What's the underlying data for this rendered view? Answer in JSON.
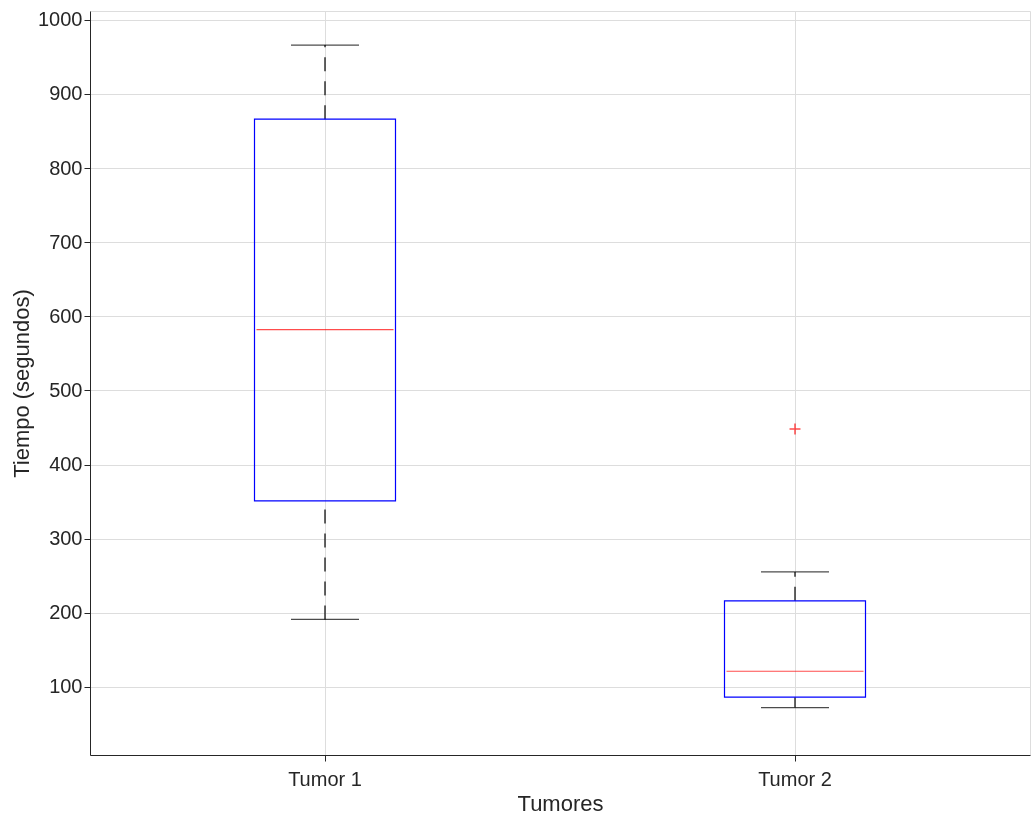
{
  "chart_data": {
    "type": "box",
    "xlabel": "Tumores",
    "ylabel": "Tiempo (segundos)",
    "categories": [
      "Tumor 1",
      "Tumor 2"
    ],
    "boxes": [
      {
        "low": 191,
        "q1": 351,
        "median": 582,
        "q3": 866,
        "high": 966
      },
      {
        "low": 72,
        "q1": 86,
        "median": 121,
        "q3": 216,
        "high": 255,
        "outliers": [
          448
        ]
      }
    ],
    "ylim": [
      8,
      1012
    ],
    "yticks": [
      100,
      200,
      300,
      400,
      500,
      600,
      700,
      800,
      900,
      1000
    ],
    "grid": true,
    "marker": "cross"
  }
}
